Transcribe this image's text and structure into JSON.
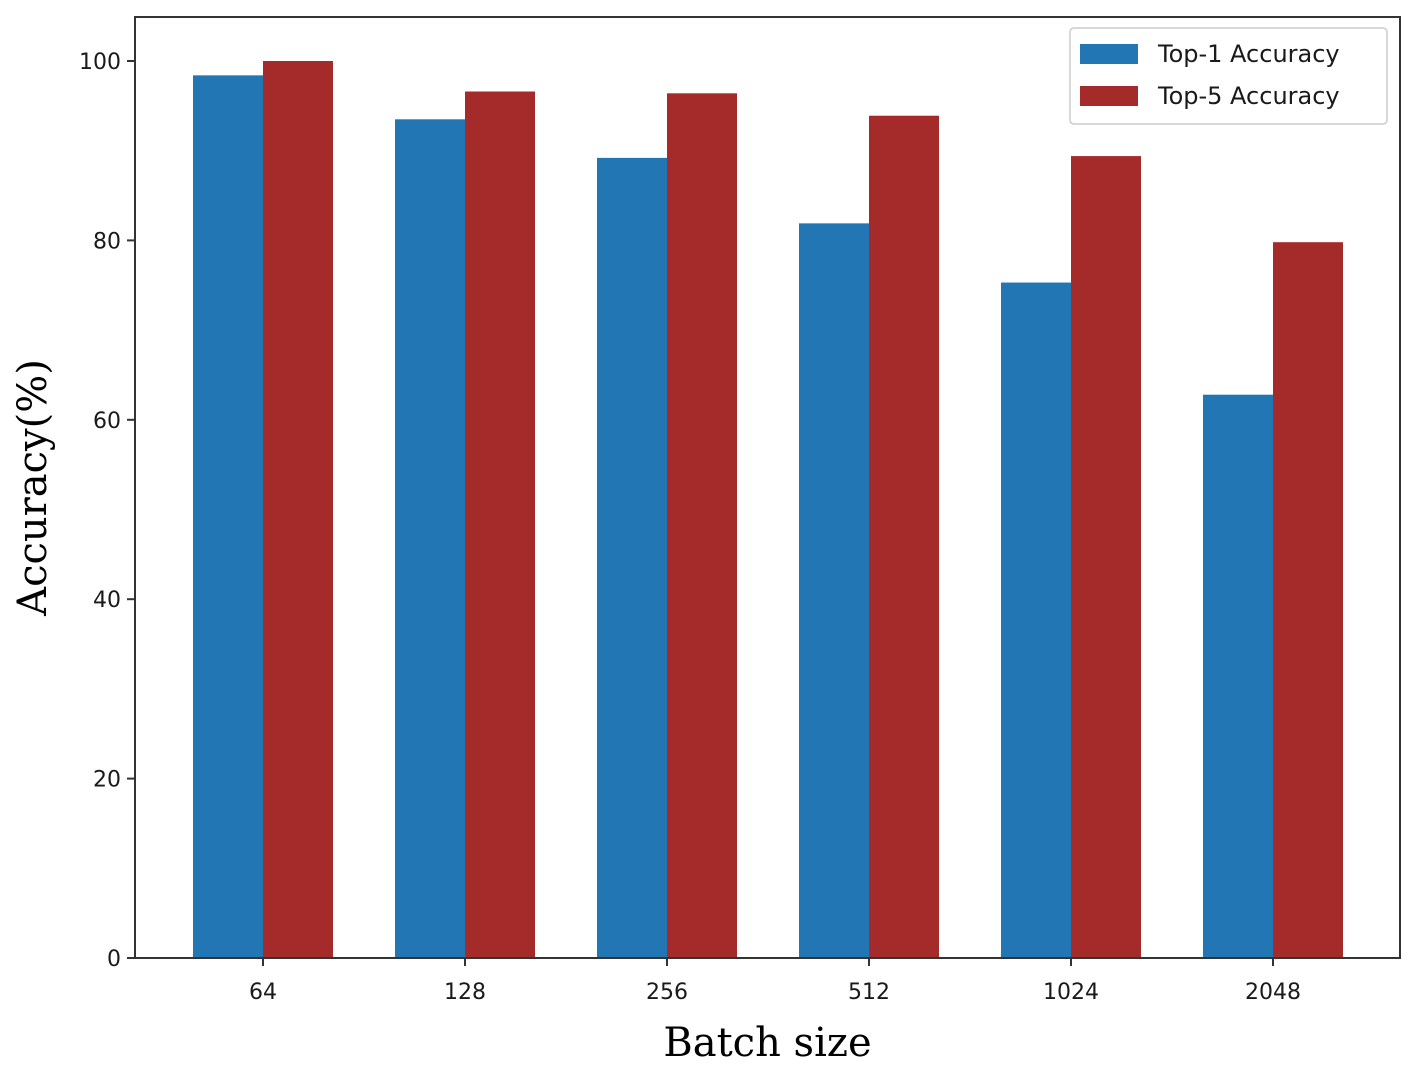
{
  "chart_data": {
    "type": "bar",
    "categories": [
      "64",
      "128",
      "256",
      "512",
      "1024",
      "2048"
    ],
    "series": [
      {
        "name": "Top-1 Accuracy",
        "color": "#2176b3",
        "values": [
          98.4,
          93.5,
          89.2,
          81.9,
          75.3,
          62.8
        ]
      },
      {
        "name": "Top-5 Accuracy",
        "color": "#a52a2a",
        "values": [
          100.0,
          96.6,
          96.4,
          93.9,
          89.4,
          79.8
        ]
      }
    ],
    "title": "",
    "xlabel": "Batch size",
    "ylabel": "Accuracy(%)",
    "ylim": [
      0,
      100
    ],
    "yticks": [
      "0",
      "20",
      "40",
      "60",
      "80",
      "100"
    ],
    "grid": false,
    "legend_position": "top-right"
  }
}
